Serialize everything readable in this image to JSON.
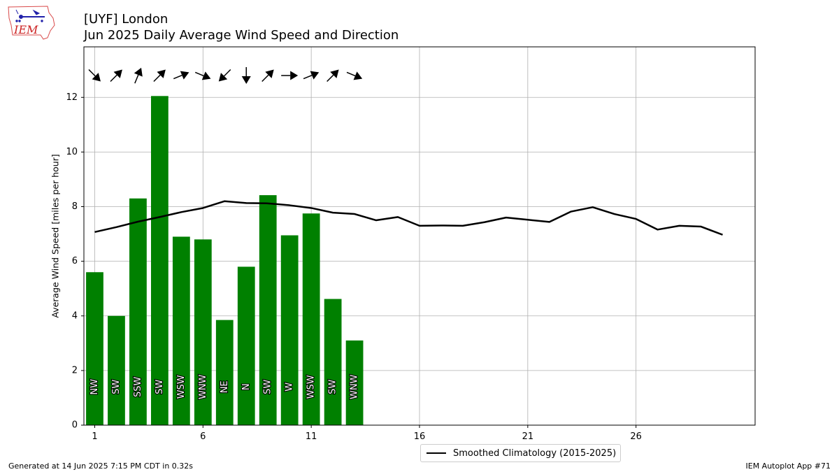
{
  "header": {
    "title_line1": "[UYF] London",
    "title_line2": "Jun 2025 Daily Average Wind Speed and Direction"
  },
  "logo": {
    "text": "IEM"
  },
  "footer": {
    "left": "Generated at 14 Jun 2025 7:15 PM CDT in 0.32s",
    "right": "IEM Autoplot App #71"
  },
  "legend": {
    "label": "Smoothed Climatology (2015-2025)"
  },
  "chart_data": {
    "type": "bar",
    "ylabel": "Average Wind Speed [miles per hour]",
    "xlabel": "",
    "xlim": [
      0.5,
      31.5
    ],
    "ylim": [
      0,
      13.85
    ],
    "x_ticks": [
      1,
      6,
      11,
      16,
      21,
      26
    ],
    "y_ticks": [
      0,
      2,
      4,
      6,
      8,
      10,
      12
    ],
    "grid": true,
    "bar_color": "#008000",
    "days": [
      1,
      2,
      3,
      4,
      5,
      6,
      7,
      8,
      9,
      10,
      11,
      12,
      13
    ],
    "values": [
      5.6,
      4.0,
      8.3,
      12.05,
      6.9,
      6.8,
      3.85,
      5.8,
      8.42,
      6.95,
      7.75,
      4.62,
      3.1
    ],
    "directions": [
      "NW",
      "SW",
      "SSW",
      "SW",
      "WSW",
      "WNW",
      "NE",
      "N",
      "SW",
      "W",
      "WSW",
      "SW",
      "WNW"
    ],
    "arrow_bearing_deg": [
      135,
      45,
      22.5,
      45,
      67.5,
      112.5,
      225,
      180,
      45,
      90,
      67.5,
      45,
      112.5
    ],
    "climatology": {
      "name": "Smoothed Climatology (2015-2025)",
      "x": [
        1,
        2,
        3,
        4,
        5,
        6,
        7,
        8,
        9,
        10,
        11,
        12,
        13,
        14,
        15,
        16,
        17,
        18,
        19,
        20,
        21,
        22,
        23,
        24,
        25,
        26,
        27,
        28,
        29,
        30
      ],
      "values": [
        7.07,
        7.25,
        7.45,
        7.62,
        7.8,
        7.95,
        8.2,
        8.13,
        8.12,
        8.05,
        7.95,
        7.78,
        7.73,
        7.5,
        7.62,
        7.3,
        7.31,
        7.3,
        7.43,
        7.6,
        7.52,
        7.44,
        7.82,
        7.98,
        7.73,
        7.55,
        7.16,
        7.3,
        7.27,
        6.97
      ]
    }
  }
}
